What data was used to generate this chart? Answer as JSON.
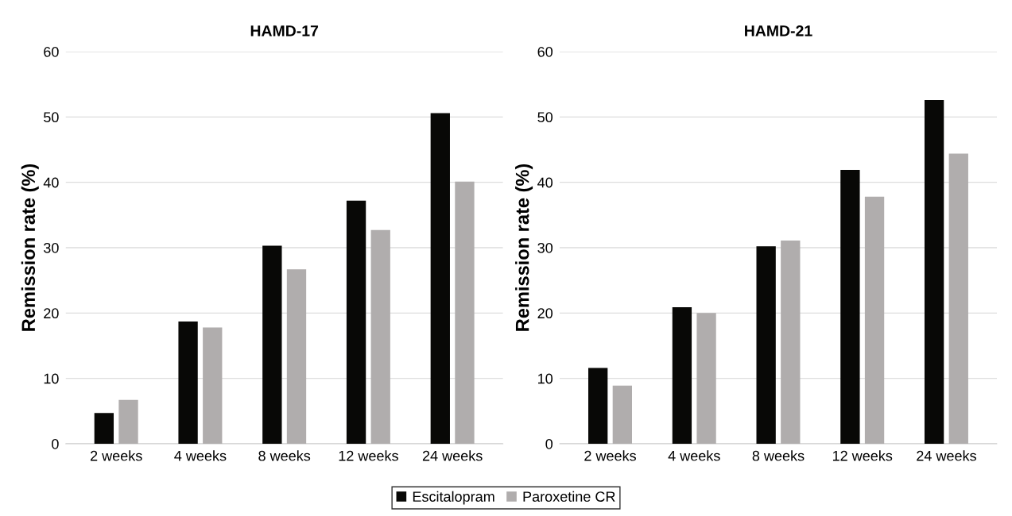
{
  "chart_data": [
    {
      "type": "bar",
      "title": "HAMD-17",
      "ylabel": "Remission rate (%)",
      "categories": [
        "2 weeks",
        "4 weeks",
        "8 weeks",
        "12 weeks",
        "24 weeks"
      ],
      "series": [
        {
          "name": "Escitalopram",
          "color": "#080806",
          "values": [
            4.7,
            18.7,
            30.3,
            37.2,
            50.6
          ]
        },
        {
          "name": "Paroxetine CR",
          "color": "#b0adad",
          "values": [
            6.7,
            17.8,
            26.7,
            32.7,
            40.1
          ]
        }
      ],
      "ylim": [
        0,
        60
      ],
      "yticks": [
        0,
        10,
        20,
        30,
        40,
        50,
        60
      ],
      "grid": "y",
      "legend": "bottom"
    },
    {
      "type": "bar",
      "title": "HAMD-21",
      "ylabel": "Remission rate (%)",
      "categories": [
        "2 weeks",
        "4 weeks",
        "8 weeks",
        "12 weeks",
        "24 weeks"
      ],
      "series": [
        {
          "color": "#080806",
          "values": [
            11.6,
            20.9,
            30.2,
            41.9,
            52.6
          ]
        },
        {
          "color": "#b0adad",
          "values": [
            8.9,
            20.0,
            31.1,
            37.8,
            44.4
          ]
        }
      ],
      "ylim": [
        0,
        60
      ],
      "yticks": [
        0,
        10,
        20,
        30,
        40,
        50,
        60
      ],
      "grid": "y"
    }
  ]
}
